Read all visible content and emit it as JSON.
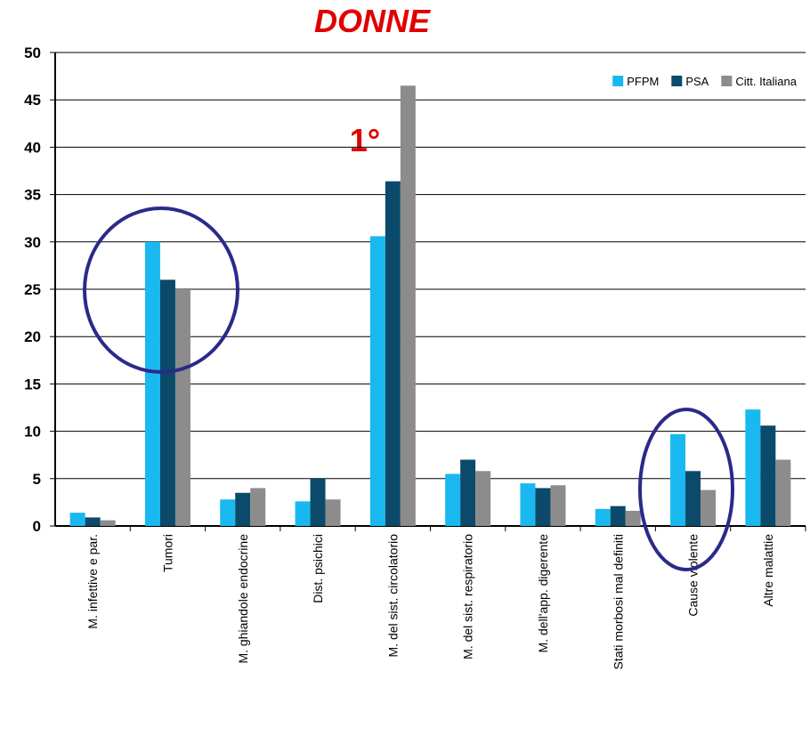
{
  "chart_data": {
    "type": "bar",
    "title": "DONNE",
    "annotations": [
      "1°"
    ],
    "categories": [
      "M. infettive e par.",
      "Tumori",
      "M. ghiandole endocrine",
      "Dist. psichici",
      "M. del sist. circolatorio",
      "M. del sist. respiratorio",
      "M. dell'app. digerente",
      "Stati morbosi mal definiti",
      "Cause violente",
      "Altre malattie"
    ],
    "series": [
      {
        "name": "PFPM",
        "color": "#1ab8f0",
        "values": [
          1.4,
          30,
          2.8,
          2.6,
          30.6,
          5.5,
          4.5,
          1.8,
          9.7,
          12.3
        ]
      },
      {
        "name": "PSA",
        "color": "#0b4a6a",
        "values": [
          0.9,
          26,
          3.5,
          5,
          36.4,
          7,
          4,
          2.1,
          5.8,
          10.6
        ]
      },
      {
        "name": "Citt. Italiana",
        "color": "#8c8c8c",
        "values": [
          0.6,
          25,
          4,
          2.8,
          46.5,
          5.8,
          4.3,
          1.6,
          3.8,
          7
        ]
      }
    ],
    "ylim": [
      0,
      50
    ],
    "yticks": [
      0,
      5,
      10,
      15,
      20,
      25,
      30,
      35,
      40,
      45,
      50
    ],
    "grid": true,
    "legend": "top-right"
  }
}
